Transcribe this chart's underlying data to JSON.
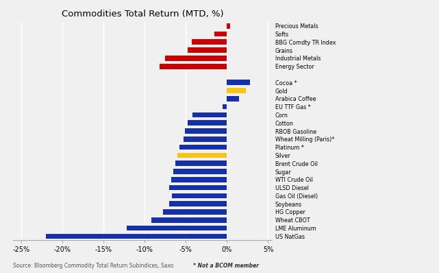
{
  "title": "Commodities Total Return (MTD, %)",
  "labels": [
    "Precious Metals",
    "Softs",
    "BBG Comdty TR Index",
    "Grains",
    "Industrial Metals",
    "Energy Sector",
    "",
    "Cocoa *",
    "Gold",
    "Arabica Coffee",
    "EU TTF Gas *",
    "Corn",
    "Cotton",
    "RBOB Gasoline",
    "Wheat Milling (Paris)*",
    "Platinum *",
    "Silver",
    "Brent Crude Oil",
    "Sugar",
    "WTI Crude Oil",
    "ULSD Diesel",
    "Gas Oil (Diesel)",
    "Soybeans",
    "HG Copper",
    "Wheat CBOT",
    "LME Aluminum",
    "US NatGas"
  ],
  "values": [
    0.4,
    -1.5,
    -4.3,
    -4.8,
    -7.5,
    -8.2,
    0.0,
    2.8,
    2.3,
    1.5,
    -0.5,
    -4.2,
    -4.8,
    -5.1,
    -5.3,
    -5.8,
    -6.0,
    -6.3,
    -6.5,
    -6.8,
    -7.0,
    -6.7,
    -7.0,
    -7.8,
    -9.2,
    -12.2,
    -22.0
  ],
  "colors": [
    "#cc0000",
    "#cc0000",
    "#cc0000",
    "#cc0000",
    "#cc0000",
    "#cc0000",
    "#f5f5f5",
    "#1530a8",
    "#f5c518",
    "#1530a8",
    "#1530a8",
    "#1530a8",
    "#1530a8",
    "#1530a8",
    "#1530a8",
    "#1530a8",
    "#f5c518",
    "#1530a8",
    "#1530a8",
    "#1530a8",
    "#1530a8",
    "#1530a8",
    "#1530a8",
    "#1530a8",
    "#1530a8",
    "#1530a8",
    "#1530a8"
  ],
  "xlim": [
    -26,
    5.5
  ],
  "xticks": [
    -25,
    -20,
    -15,
    -10,
    -5,
    0,
    5
  ],
  "xticklabels": [
    "-25%",
    "-20%",
    "-15%",
    "-10%",
    "-5%",
    "0%",
    "5%"
  ],
  "source_text": "Source: Bloomberg Commodity Total Return Subindices, Saxo",
  "note_text": "* Not a BCOM member",
  "background_color": "#f0f0f0"
}
